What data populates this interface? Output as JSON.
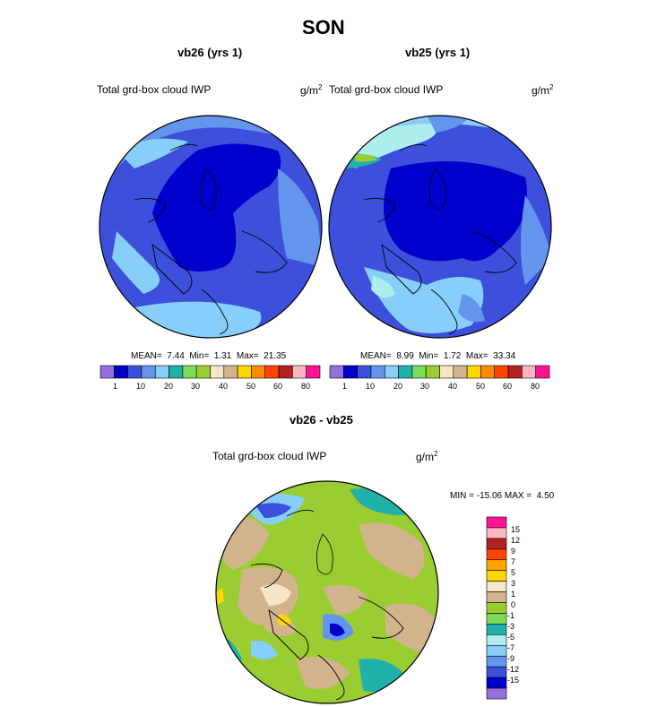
{
  "page_title": "SON",
  "colors": {
    "hbar": [
      "#9370db",
      "#0000cd",
      "#3c50dc",
      "#6495ed",
      "#87cefa",
      "#20b2aa",
      "#7cdc5a",
      "#9acd32",
      "#f5e6c8",
      "#d2b48c",
      "#ffd700",
      "#ff8c00",
      "#ff4500",
      "#b22222",
      "#ffb6c1",
      "#ff1493"
    ],
    "vbar": [
      "#9370db",
      "#0000cd",
      "#3c50dc",
      "#6495ed",
      "#87cefa",
      "#afeeee",
      "#20b2aa",
      "#7cdc5a",
      "#9acd32",
      "#d2b48c",
      "#f5e6c8",
      "#ffd700",
      "#ffa500",
      "#ff4500",
      "#b22222",
      "#ffb6c1",
      "#ff1493"
    ]
  },
  "panels": [
    {
      "title": "vb26 (yrs 1)",
      "variable": "Total grd-box cloud IWP",
      "units_base": "g/m",
      "units_exp": "2",
      "mean_label": "MEAN=",
      "mean": "7.44",
      "min_label": "Min=",
      "min": "1.31",
      "max_label": "Max=",
      "max": "21.35"
    },
    {
      "title": "vb25 (yrs 1)",
      "variable": "Total grd-box cloud IWP",
      "units_base": "g/m",
      "units_exp": "2",
      "mean_label": "MEAN=",
      "mean": "8.99",
      "min_label": "Min=",
      "min": "1.72",
      "max_label": "Max=",
      "max": "33.34"
    }
  ],
  "hbar_ticks": [
    "1",
    "10",
    "20",
    "30",
    "40",
    "50",
    "60",
    "80"
  ],
  "diff": {
    "title": "vb26 - vb25",
    "variable": "Total grd-box cloud IWP",
    "units_base": "g/m",
    "units_exp": "2",
    "min_label": "MIN =",
    "min": "-15.06",
    "max_label": "MAX =",
    "max": "4.50",
    "ticks": [
      "15",
      "12",
      "9",
      "7",
      "5",
      "3",
      "1",
      "0",
      "-1",
      "-3",
      "-5",
      "-7",
      "-9",
      "-12",
      "-15"
    ]
  }
}
